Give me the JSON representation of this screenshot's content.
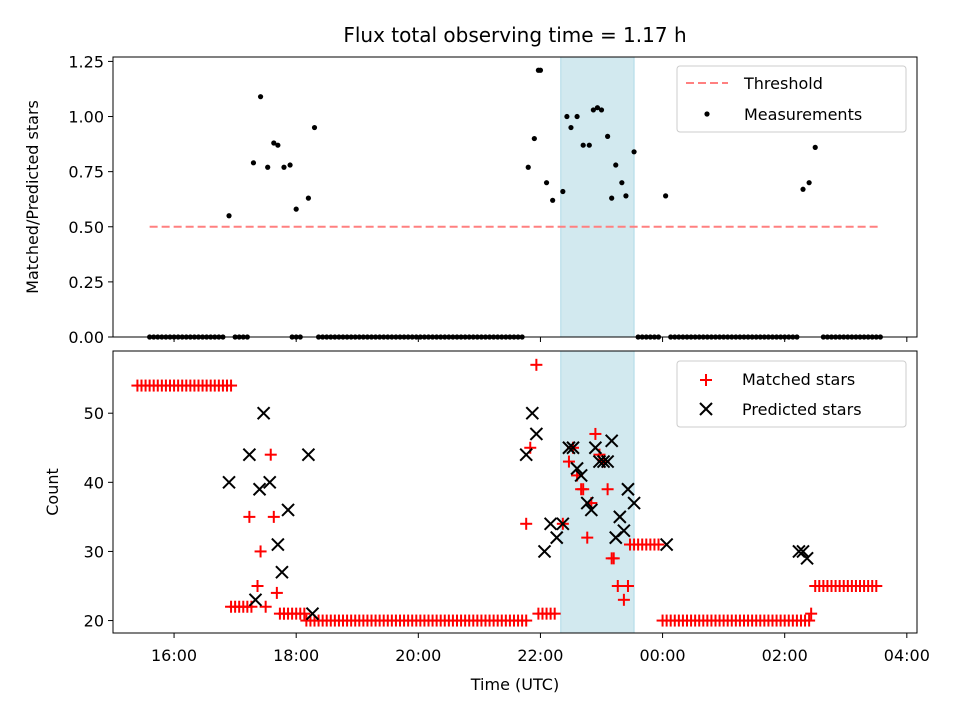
{
  "chart_data": [
    {
      "type": "scatter",
      "title": "Flux total observing time = 1.17 h",
      "ylabel": "Matched/Predicted stars",
      "xlim": [
        "15:00",
        "04:10"
      ],
      "ylim": [
        0,
        1.27
      ],
      "x_ticks": [
        "16:00",
        "18:00",
        "20:00",
        "22:00",
        "00:00",
        "02:00",
        "04:00"
      ],
      "y_ticks": [
        "0.00",
        "0.25",
        "0.50",
        "0.75",
        "1.00",
        "1.25"
      ],
      "highlight_span": [
        "22:20",
        "23:32"
      ],
      "highlight_color": "#d2e9ef",
      "legend_position": "top-right",
      "threshold": {
        "name": "Threshold",
        "y": 0.5,
        "x_range": [
          "15:36",
          "03:34"
        ],
        "color": "#ff8080"
      },
      "series": [
        {
          "name": "Measurements",
          "color": "#000000",
          "x": [
            "16:54",
            "17:18",
            "17:25",
            "17:32",
            "17:38",
            "17:42",
            "17:48",
            "17:54",
            "18:00",
            "18:12",
            "18:18",
            "21:48",
            "21:54",
            "21:58",
            "22:00",
            "22:06",
            "22:12",
            "22:22",
            "22:26",
            "22:30",
            "22:36",
            "22:42",
            "22:48",
            "22:52",
            "22:56",
            "23:00",
            "23:06",
            "23:10",
            "23:14",
            "23:20",
            "23:24",
            "23:32",
            "00:03",
            "02:18",
            "02:24",
            "02:30"
          ],
          "y": [
            0.55,
            0.79,
            1.09,
            0.77,
            0.88,
            0.87,
            0.77,
            0.78,
            0.58,
            0.63,
            0.95,
            0.77,
            0.9,
            1.21,
            1.21,
            0.7,
            0.62,
            0.66,
            1.0,
            0.95,
            1.0,
            0.87,
            0.87,
            1.03,
            1.04,
            1.03,
            0.91,
            0.63,
            0.78,
            0.7,
            0.64,
            0.84,
            0.64,
            0.67,
            0.7,
            0.86
          ]
        }
      ],
      "zero_measurements": {
        "color": "#000000",
        "y": 0,
        "x_ranges": [
          [
            "15:36",
            "16:48"
          ],
          [
            "17:00",
            "17:14"
          ],
          [
            "17:56",
            "18:04"
          ],
          [
            "18:22",
            "21:42"
          ],
          [
            "23:36",
            "23:58"
          ],
          [
            "00:08",
            "02:12"
          ],
          [
            "02:38",
            "03:34"
          ]
        ]
      }
    },
    {
      "type": "scatter",
      "xlabel": "Time (UTC)",
      "ylabel": "Count",
      "xlim": [
        "15:00",
        "04:10"
      ],
      "ylim": [
        18.2,
        59
      ],
      "x_ticks": [
        "16:00",
        "18:00",
        "20:00",
        "22:00",
        "00:00",
        "02:00",
        "04:00"
      ],
      "y_ticks": [
        "20",
        "30",
        "40",
        "50"
      ],
      "highlight_span": [
        "22:20",
        "23:32"
      ],
      "highlight_color": "#d2e9ef",
      "legend_position": "top-right",
      "series": [
        {
          "name": "Matched stars",
          "marker": "plus",
          "color": "#ff0000",
          "x": [
            "17:14",
            "17:22",
            "17:25",
            "17:30",
            "17:35",
            "17:38",
            "17:41",
            "17:48",
            "21:46",
            "21:50",
            "21:56",
            "22:22",
            "22:28",
            "22:32",
            "22:36",
            "22:40",
            "22:42",
            "22:46",
            "22:50",
            "22:54",
            "22:58",
            "23:02",
            "23:06",
            "23:10",
            "23:12",
            "23:16",
            "23:22",
            "23:26",
            "02:26"
          ],
          "y": [
            35,
            25,
            30,
            22,
            44,
            35,
            24,
            21,
            34,
            45,
            57,
            34,
            43,
            45,
            41,
            39,
            39,
            32,
            37,
            47,
            44,
            43,
            39,
            29,
            29,
            25,
            23,
            25,
            21
          ],
          "constant_runs": [
            {
              "x": [
                "15:24",
                "16:56"
              ],
              "y": 54
            },
            {
              "x": [
                "16:56",
                "17:16"
              ],
              "y": 22
            },
            {
              "x": [
                "17:44",
                "18:10"
              ],
              "y": 21
            },
            {
              "x": [
                "18:10",
                "21:46"
              ],
              "y": 20
            },
            {
              "x": [
                "21:58",
                "22:14"
              ],
              "y": 21
            },
            {
              "x": [
                "23:28",
                "23:56"
              ],
              "y": 31
            },
            {
              "x": [
                "00:00",
                "02:24"
              ],
              "y": 20
            },
            {
              "x": [
                "02:30",
                "03:32"
              ],
              "y": 25
            }
          ]
        },
        {
          "name": "Predicted stars",
          "marker": "x",
          "color": "#000000",
          "x": [
            "16:54",
            "17:14",
            "17:20",
            "17:24",
            "17:28",
            "17:34",
            "17:42",
            "17:46",
            "17:52",
            "18:12",
            "18:16",
            "21:46",
            "21:52",
            "21:56",
            "22:04",
            "22:10",
            "22:16",
            "22:22",
            "22:28",
            "22:32",
            "22:36",
            "22:40",
            "22:46",
            "22:50",
            "22:54",
            "22:58",
            "23:02",
            "23:06",
            "23:10",
            "23:14",
            "23:18",
            "23:22",
            "23:26",
            "23:32",
            "00:04",
            "02:14",
            "02:18",
            "02:22"
          ],
          "y": [
            40,
            44,
            23,
            39,
            50,
            40,
            31,
            27,
            36,
            44,
            21,
            44,
            50,
            47,
            30,
            34,
            32,
            34,
            45,
            45,
            42,
            41,
            37,
            36,
            45,
            43,
            43,
            43,
            46,
            32,
            35,
            33,
            39,
            37,
            31,
            30,
            30,
            29
          ]
        }
      ]
    }
  ]
}
